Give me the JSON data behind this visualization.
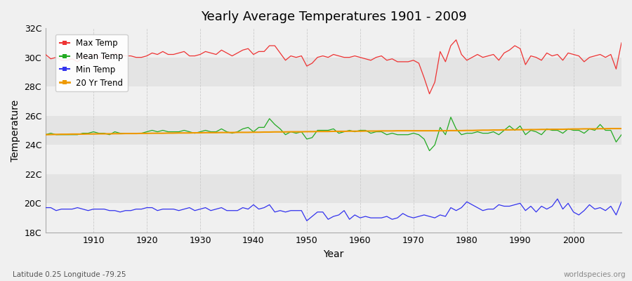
{
  "title": "Yearly Average Temperatures 1901 - 2009",
  "xlabel": "Year",
  "ylabel": "Temperature",
  "footnote_left": "Latitude 0.25 Longitude -79.25",
  "footnote_right": "worldspecies.org",
  "fig_bg_color": "#f0f0f0",
  "plot_bg_color": "#f8f8f8",
  "band_color_light": "#f0f0f0",
  "band_color_dark": "#e4e4e4",
  "vgrid_color": "#cccccc",
  "years": [
    1901,
    1902,
    1903,
    1904,
    1905,
    1906,
    1907,
    1908,
    1909,
    1910,
    1911,
    1912,
    1913,
    1914,
    1915,
    1916,
    1917,
    1918,
    1919,
    1920,
    1921,
    1922,
    1923,
    1924,
    1925,
    1926,
    1927,
    1928,
    1929,
    1930,
    1931,
    1932,
    1933,
    1934,
    1935,
    1936,
    1937,
    1938,
    1939,
    1940,
    1941,
    1942,
    1943,
    1944,
    1945,
    1946,
    1947,
    1948,
    1949,
    1950,
    1951,
    1952,
    1953,
    1954,
    1955,
    1956,
    1957,
    1958,
    1959,
    1960,
    1961,
    1962,
    1963,
    1964,
    1965,
    1966,
    1967,
    1968,
    1969,
    1970,
    1971,
    1972,
    1973,
    1974,
    1975,
    1976,
    1977,
    1978,
    1979,
    1980,
    1981,
    1982,
    1983,
    1984,
    1985,
    1986,
    1987,
    1988,
    1989,
    1990,
    1991,
    1992,
    1993,
    1994,
    1995,
    1996,
    1997,
    1998,
    1999,
    2000,
    2001,
    2002,
    2003,
    2004,
    2005,
    2006,
    2007,
    2008,
    2009
  ],
  "max_temp": [
    30.2,
    29.9,
    30.0,
    29.8,
    29.8,
    29.9,
    29.7,
    30.0,
    30.0,
    30.2,
    30.0,
    30.0,
    29.9,
    30.3,
    30.2,
    30.1,
    30.1,
    30.0,
    30.0,
    30.1,
    30.3,
    30.2,
    30.4,
    30.2,
    30.2,
    30.3,
    30.4,
    30.1,
    30.1,
    30.2,
    30.4,
    30.3,
    30.2,
    30.5,
    30.3,
    30.1,
    30.3,
    30.5,
    30.6,
    30.2,
    30.4,
    30.4,
    30.8,
    30.8,
    30.3,
    29.8,
    30.1,
    30.0,
    30.1,
    29.4,
    29.6,
    30.0,
    30.1,
    30.0,
    30.2,
    30.1,
    30.0,
    30.0,
    30.1,
    30.0,
    29.9,
    29.8,
    30.0,
    30.1,
    29.8,
    29.9,
    29.7,
    29.7,
    29.7,
    29.8,
    29.6,
    28.6,
    27.5,
    28.3,
    30.4,
    29.7,
    30.8,
    31.2,
    30.2,
    29.8,
    30.0,
    30.2,
    30.0,
    30.1,
    30.2,
    29.8,
    30.3,
    30.5,
    30.8,
    30.6,
    29.5,
    30.1,
    30.0,
    29.8,
    30.3,
    30.1,
    30.2,
    29.8,
    30.3,
    30.2,
    30.1,
    29.7,
    30.0,
    30.1,
    30.2,
    30.0,
    30.2,
    29.2,
    31.0
  ],
  "mean_temp": [
    24.7,
    24.8,
    24.7,
    24.7,
    24.7,
    24.7,
    24.7,
    24.8,
    24.8,
    24.9,
    24.8,
    24.8,
    24.7,
    24.9,
    24.8,
    24.8,
    24.8,
    24.8,
    24.8,
    24.9,
    25.0,
    24.9,
    25.0,
    24.9,
    24.9,
    24.9,
    25.0,
    24.9,
    24.8,
    24.9,
    25.0,
    24.9,
    24.9,
    25.1,
    24.9,
    24.8,
    24.9,
    25.1,
    25.2,
    24.9,
    25.2,
    25.2,
    25.8,
    25.4,
    25.1,
    24.7,
    24.9,
    24.8,
    24.9,
    24.4,
    24.5,
    25.0,
    25.0,
    25.0,
    25.1,
    24.8,
    24.9,
    25.0,
    24.9,
    25.0,
    25.0,
    24.8,
    24.9,
    24.9,
    24.7,
    24.8,
    24.7,
    24.7,
    24.7,
    24.8,
    24.7,
    24.4,
    23.6,
    24.0,
    25.2,
    24.7,
    25.9,
    25.1,
    24.7,
    24.8,
    24.8,
    24.9,
    24.8,
    24.8,
    24.9,
    24.7,
    25.0,
    25.3,
    25.0,
    25.3,
    24.7,
    25.0,
    24.9,
    24.7,
    25.1,
    25.0,
    25.0,
    24.8,
    25.1,
    25.0,
    25.0,
    24.8,
    25.1,
    25.0,
    25.4,
    25.0,
    25.0,
    24.2,
    24.7
  ],
  "min_temp": [
    19.7,
    19.7,
    19.5,
    19.6,
    19.6,
    19.6,
    19.7,
    19.6,
    19.5,
    19.6,
    19.6,
    19.6,
    19.5,
    19.5,
    19.4,
    19.5,
    19.5,
    19.6,
    19.6,
    19.7,
    19.7,
    19.5,
    19.6,
    19.6,
    19.6,
    19.5,
    19.6,
    19.7,
    19.5,
    19.6,
    19.7,
    19.5,
    19.6,
    19.7,
    19.5,
    19.5,
    19.5,
    19.7,
    19.6,
    19.9,
    19.6,
    19.7,
    19.9,
    19.4,
    19.5,
    19.4,
    19.5,
    19.5,
    19.5,
    18.8,
    19.1,
    19.4,
    19.4,
    18.9,
    19.1,
    19.2,
    19.5,
    18.9,
    19.2,
    19.0,
    19.1,
    19.0,
    19.0,
    19.0,
    19.1,
    18.9,
    19.0,
    19.3,
    19.1,
    19.0,
    19.1,
    19.2,
    19.1,
    19.0,
    19.2,
    19.1,
    19.7,
    19.5,
    19.7,
    20.1,
    19.9,
    19.7,
    19.5,
    19.6,
    19.6,
    19.9,
    19.8,
    19.8,
    19.9,
    20.0,
    19.5,
    19.8,
    19.4,
    19.8,
    19.6,
    19.8,
    20.3,
    19.6,
    20.0,
    19.4,
    19.2,
    19.5,
    19.9,
    19.6,
    19.7,
    19.5,
    19.8,
    19.2,
    20.1
  ],
  "trend": [
    24.7,
    24.71,
    24.72,
    24.73,
    24.73,
    24.74,
    24.74,
    24.74,
    24.75,
    24.75,
    24.76,
    24.76,
    24.76,
    24.77,
    24.77,
    24.78,
    24.78,
    24.78,
    24.79,
    24.79,
    24.8,
    24.8,
    24.8,
    24.81,
    24.81,
    24.82,
    24.82,
    24.82,
    24.83,
    24.83,
    24.84,
    24.84,
    24.84,
    24.85,
    24.85,
    24.85,
    24.86,
    24.86,
    24.86,
    24.87,
    24.87,
    24.88,
    24.88,
    24.89,
    24.89,
    24.89,
    24.9,
    24.9,
    24.9,
    24.91,
    24.91,
    24.92,
    24.92,
    24.92,
    24.93,
    24.93,
    24.93,
    24.94,
    24.94,
    24.94,
    24.95,
    24.95,
    24.95,
    24.96,
    24.96,
    24.96,
    24.97,
    24.97,
    24.97,
    24.97,
    24.97,
    24.97,
    24.97,
    24.97,
    24.97,
    24.97,
    24.98,
    24.98,
    24.98,
    24.99,
    24.99,
    25.0,
    25.01,
    25.01,
    25.02,
    25.02,
    25.03,
    25.03,
    25.04,
    25.04,
    25.04,
    25.05,
    25.05,
    25.06,
    25.06,
    25.07,
    25.07,
    25.07,
    25.08,
    25.09,
    25.09,
    25.1,
    25.1,
    25.1,
    25.11,
    25.11,
    25.12,
    25.12,
    25.12
  ],
  "max_color": "#ee3333",
  "mean_color": "#22aa22",
  "min_color": "#3333ee",
  "trend_color": "#ee9900",
  "ylim_min": 18,
  "ylim_max": 32,
  "yticks": [
    18,
    20,
    22,
    24,
    26,
    28,
    30,
    32
  ],
  "ytick_labels": [
    "18C",
    "20C",
    "22C",
    "24C",
    "26C",
    "28C",
    "30C",
    "32C"
  ],
  "xlim_min": 1901,
  "xlim_max": 2009,
  "xticks": [
    1910,
    1920,
    1930,
    1940,
    1950,
    1960,
    1970,
    1980,
    1990,
    2000
  ],
  "legend_labels": [
    "Max Temp",
    "Mean Temp",
    "Min Temp",
    "20 Yr Trend"
  ],
  "legend_colors": [
    "#ee3333",
    "#22aa22",
    "#3333ee",
    "#ee9900"
  ]
}
